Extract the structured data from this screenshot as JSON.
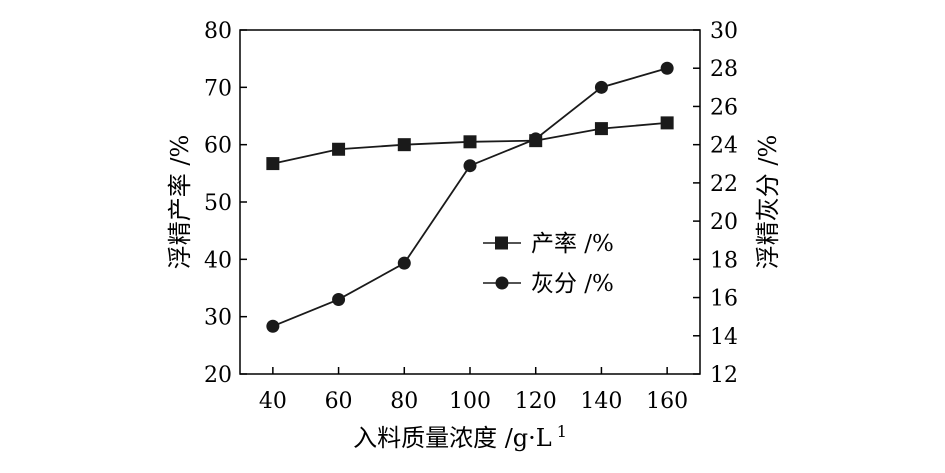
{
  "chart_data": {
    "type": "line",
    "x": [
      40,
      60,
      80,
      100,
      120,
      140,
      160
    ],
    "xlabel": "入料质量浓度 /g·L",
    "xlabel_sup": "1",
    "xlim": [
      30,
      170
    ],
    "xticks": [
      "40",
      "60",
      "80",
      "100",
      "120",
      "140",
      "160"
    ],
    "ylabel": "浮精产率 /%",
    "ylim": [
      20,
      80
    ],
    "yticks": [
      "20",
      "30",
      "40",
      "50",
      "60",
      "70",
      "80"
    ],
    "y2label": "浮精灰分 /%",
    "y2lim": [
      12,
      30
    ],
    "y2ticks": [
      "12",
      "14",
      "16",
      "18",
      "20",
      "22",
      "24",
      "26",
      "28",
      "30"
    ],
    "grid": false,
    "legend_position": "center-right",
    "series": [
      {
        "name": "产率 /%",
        "axis": "left",
        "marker": "square",
        "color": "#1a1a1a",
        "values": [
          56.7,
          59.2,
          60.0,
          60.5,
          60.7,
          62.8,
          63.8
        ]
      },
      {
        "name": "灰分 /%",
        "axis": "right",
        "marker": "circle",
        "color": "#1a1a1a",
        "values": [
          14.5,
          15.9,
          17.8,
          22.9,
          24.3,
          27.0,
          28.0
        ]
      }
    ]
  }
}
